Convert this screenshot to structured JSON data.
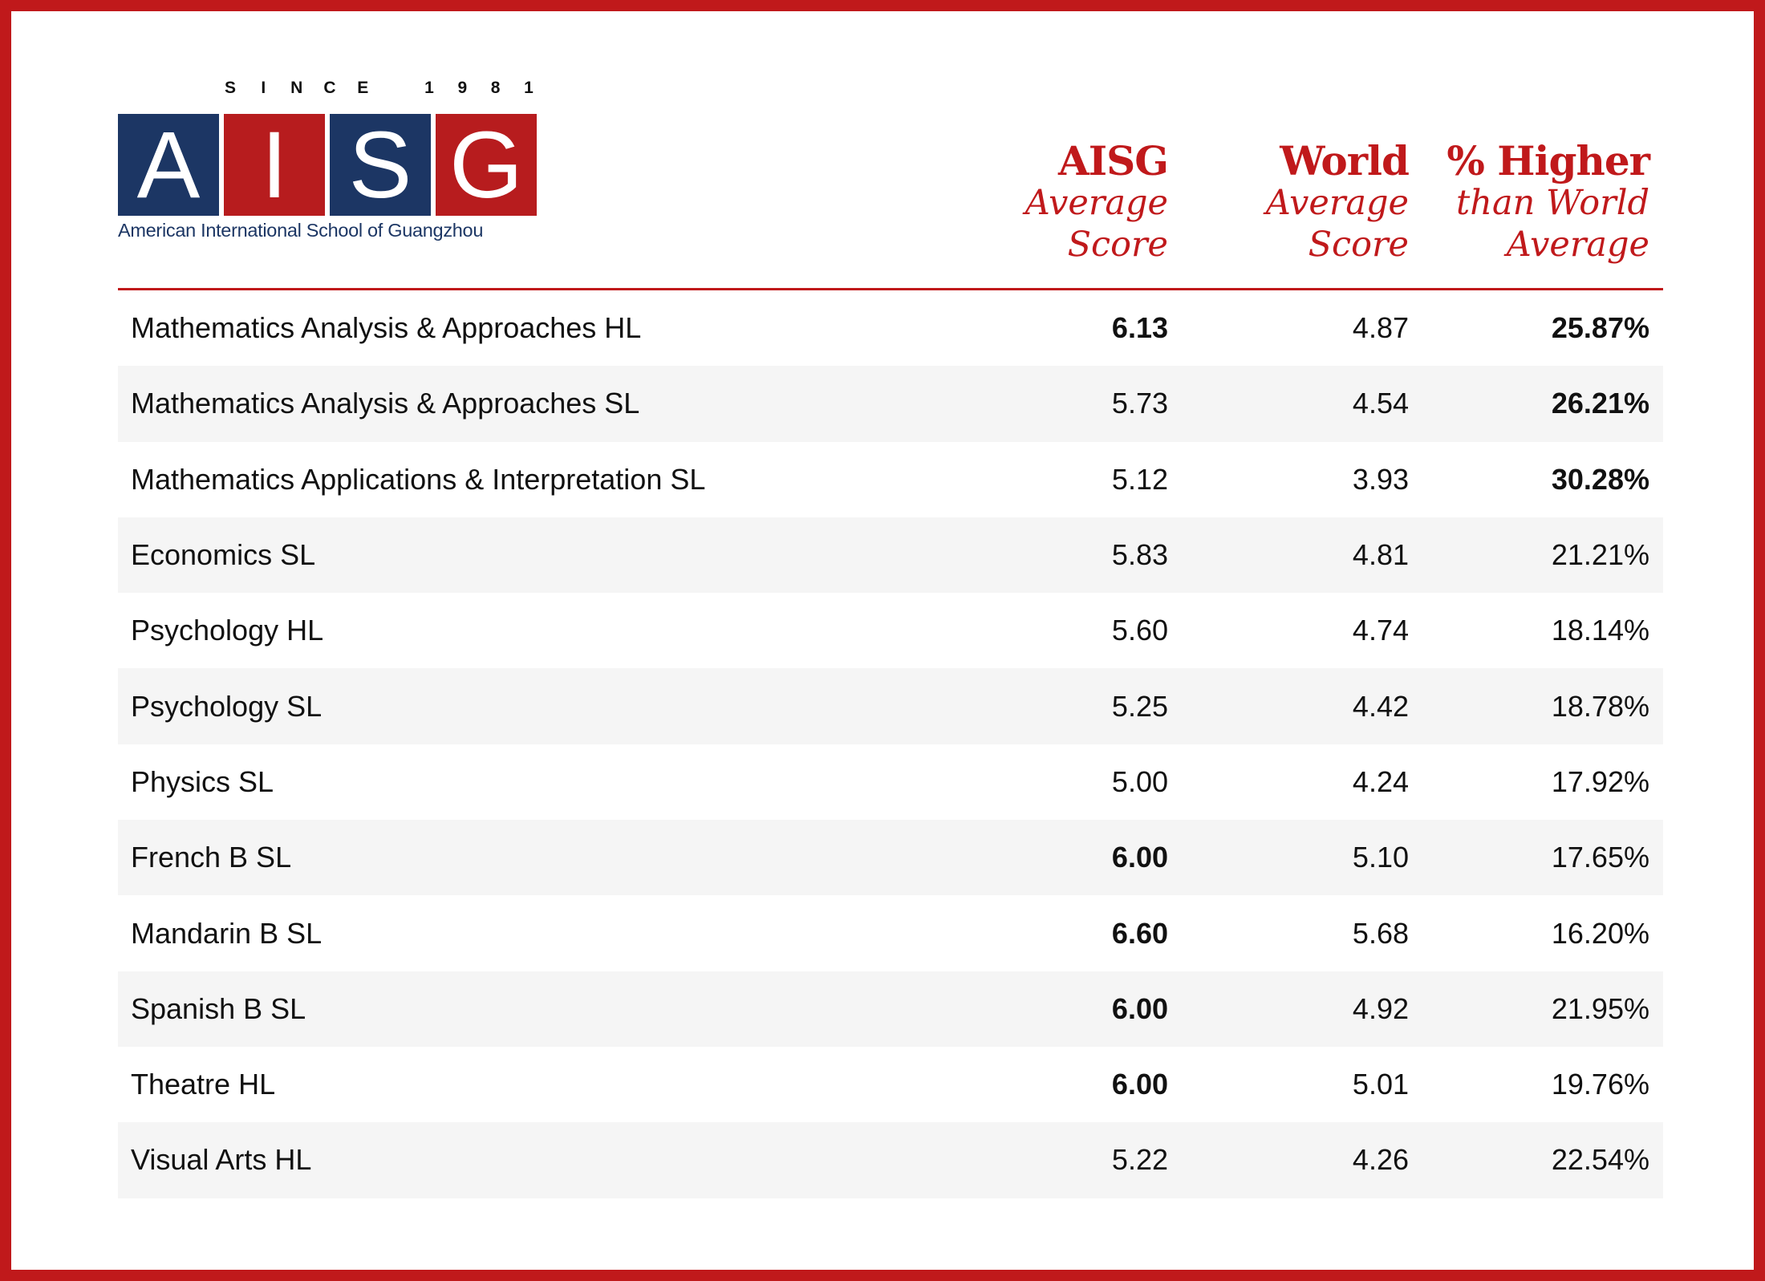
{
  "logo": {
    "since": [
      "S",
      "I",
      "N",
      "C",
      "E",
      "",
      "1",
      "9",
      "8",
      "1"
    ],
    "letters": [
      "A",
      "I",
      "S",
      "G"
    ],
    "caption": "American International School of Guangzhou"
  },
  "headers": {
    "col1": {
      "main": "AISG",
      "sub1": "Average",
      "sub2": "Score"
    },
    "col2": {
      "main": "World",
      "sub1": "Average",
      "sub2": "Score"
    },
    "col3": {
      "main": "% Higher",
      "sub1": "than World",
      "sub2": "Average"
    }
  },
  "colors": {
    "brand_red": "#c0191b",
    "brand_blue": "#1c3664",
    "row_alt": "#f5f5f5"
  },
  "chart_data": {
    "type": "table",
    "columns": [
      "",
      "AISG Average Score",
      "World Average Score",
      "% Higher than World Average"
    ],
    "rows": [
      {
        "subject": "Mathematics Analysis & Approaches HL",
        "aisg": "6.13",
        "world": "4.87",
        "higher": "25.87%",
        "aisg_bold": true,
        "higher_bold": true
      },
      {
        "subject": "Mathematics Analysis & Approaches SL",
        "aisg": "5.73",
        "world": "4.54",
        "higher": "26.21%",
        "aisg_bold": false,
        "higher_bold": true
      },
      {
        "subject": "Mathematics Applications & Interpretation SL",
        "aisg": "5.12",
        "world": "3.93",
        "higher": "30.28%",
        "aisg_bold": false,
        "higher_bold": true
      },
      {
        "subject": "Economics SL",
        "aisg": "5.83",
        "world": "4.81",
        "higher": "21.21%",
        "aisg_bold": false,
        "higher_bold": false
      },
      {
        "subject": "Psychology HL",
        "aisg": "5.60",
        "world": "4.74",
        "higher": "18.14%",
        "aisg_bold": false,
        "higher_bold": false
      },
      {
        "subject": "Psychology SL",
        "aisg": "5.25",
        "world": "4.42",
        "higher": "18.78%",
        "aisg_bold": false,
        "higher_bold": false
      },
      {
        "subject": "Physics SL",
        "aisg": "5.00",
        "world": "4.24",
        "higher": "17.92%",
        "aisg_bold": false,
        "higher_bold": false
      },
      {
        "subject": "French B SL",
        "aisg": "6.00",
        "world": "5.10",
        "higher": "17.65%",
        "aisg_bold": true,
        "higher_bold": false
      },
      {
        "subject": "Mandarin B SL",
        "aisg": "6.60",
        "world": "5.68",
        "higher": "16.20%",
        "aisg_bold": true,
        "higher_bold": false
      },
      {
        "subject": "Spanish B SL",
        "aisg": "6.00",
        "world": "4.92",
        "higher": "21.95%",
        "aisg_bold": true,
        "higher_bold": false
      },
      {
        "subject": "Theatre HL",
        "aisg": "6.00",
        "world": "5.01",
        "higher": "19.76%",
        "aisg_bold": true,
        "higher_bold": false
      },
      {
        "subject": "Visual Arts HL",
        "aisg": "5.22",
        "world": "4.26",
        "higher": "22.54%",
        "aisg_bold": false,
        "higher_bold": false
      }
    ]
  }
}
